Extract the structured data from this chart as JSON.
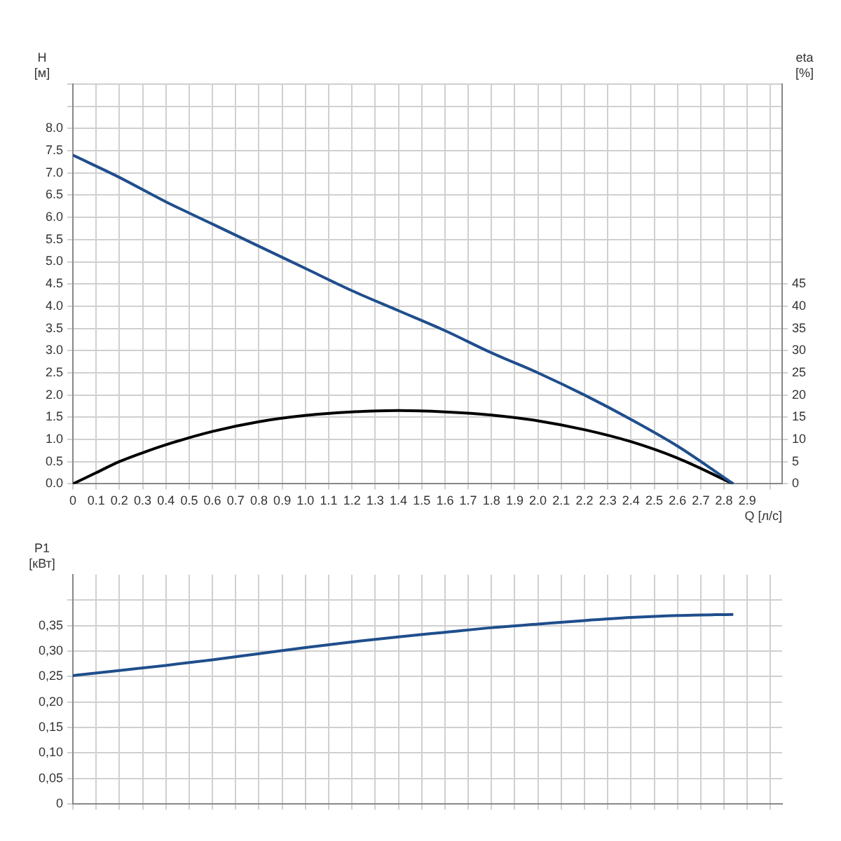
{
  "chart_data": [
    {
      "type": "line",
      "xlabel": "Q [л/с]",
      "ylabel": "H [м]",
      "y2label": "eta [%]",
      "xlim": [
        0,
        3.05
      ],
      "xticks": [
        {
          "value": 0,
          "label": "0"
        },
        {
          "value": 0.1,
          "label": "0.1"
        },
        {
          "value": 0.2,
          "label": "0.2"
        },
        {
          "value": 0.3,
          "label": "0.3"
        },
        {
          "value": 0.4,
          "label": "0.4"
        },
        {
          "value": 0.5,
          "label": "0.5"
        },
        {
          "value": 0.6,
          "label": "0.6"
        },
        {
          "value": 0.7,
          "label": "0.7"
        },
        {
          "value": 0.8,
          "label": "0.8"
        },
        {
          "value": 0.9,
          "label": "0.9"
        },
        {
          "value": 1,
          "label": "1.0"
        },
        {
          "value": 1.1,
          "label": "1.1"
        },
        {
          "value": 1.2,
          "label": "1.2"
        },
        {
          "value": 1.3,
          "label": "1.3"
        },
        {
          "value": 1.4,
          "label": "1.4"
        },
        {
          "value": 1.5,
          "label": "1.5"
        },
        {
          "value": 1.6,
          "label": "1.6"
        },
        {
          "value": 1.7,
          "label": "1.7"
        },
        {
          "value": 1.8,
          "label": "1.8"
        },
        {
          "value": 1.9,
          "label": "1.9"
        },
        {
          "value": 2,
          "label": "2.0"
        },
        {
          "value": 2.1,
          "label": "2.1"
        },
        {
          "value": 2.2,
          "label": "2.2"
        },
        {
          "value": 2.3,
          "label": "2.3"
        },
        {
          "value": 2.4,
          "label": "2.4"
        },
        {
          "value": 2.5,
          "label": "2.5"
        },
        {
          "value": 2.6,
          "label": "2.6"
        },
        {
          "value": 2.7,
          "label": "2.7"
        },
        {
          "value": 2.8,
          "label": "2.8"
        },
        {
          "value": 2.9,
          "label": "2.9"
        },
        {
          "value": 3,
          "label": null
        }
      ],
      "ylim": [
        0,
        9
      ],
      "yticks": [
        {
          "value": 0,
          "label": "0.0"
        },
        {
          "value": 0.5,
          "label": "0.5"
        },
        {
          "value": 1,
          "label": "1.0"
        },
        {
          "value": 1.5,
          "label": "1.5"
        },
        {
          "value": 2,
          "label": "2.0"
        },
        {
          "value": 2.5,
          "label": "2.5"
        },
        {
          "value": 3,
          "label": "3.0"
        },
        {
          "value": 3.5,
          "label": "3.5"
        },
        {
          "value": 4,
          "label": "4.0"
        },
        {
          "value": 4.5,
          "label": "4.5"
        },
        {
          "value": 5,
          "label": "5.0"
        },
        {
          "value": 5.5,
          "label": "5.5"
        },
        {
          "value": 6,
          "label": "6.0"
        },
        {
          "value": 6.5,
          "label": "6.5"
        },
        {
          "value": 7,
          "label": "7.0"
        },
        {
          "value": 7.5,
          "label": "7.5"
        },
        {
          "value": 8,
          "label": "8.0"
        },
        {
          "value": 8.5,
          "label": null
        },
        {
          "value": 9,
          "label": null
        }
      ],
      "y2lim": [
        0,
        90
      ],
      "y2ticks": [
        0,
        5,
        10,
        15,
        20,
        25,
        30,
        35,
        40,
        45
      ],
      "grid": true,
      "legend": false,
      "marker": "none",
      "line_style": "solid",
      "series": [
        {
          "color": "#1f4e8c",
          "x": [
            0,
            0.2,
            0.4,
            0.6,
            0.8,
            1.0,
            1.2,
            1.4,
            1.6,
            1.8,
            2.0,
            2.2,
            2.4,
            2.6,
            2.84
          ],
          "values": [
            7.4,
            6.9,
            6.35,
            5.85,
            5.35,
            4.85,
            4.35,
            3.9,
            3.45,
            2.95,
            2.5,
            2.0,
            1.45,
            0.85,
            0
          ]
        },
        {
          "color": "#000000",
          "axis": "y2",
          "x": [
            0,
            0.1,
            0.2,
            0.3,
            0.4,
            0.6,
            0.8,
            1.0,
            1.2,
            1.4,
            1.6,
            1.8,
            2.0,
            2.2,
            2.4,
            2.6,
            2.84
          ],
          "values": [
            0,
            2.5,
            5,
            7,
            8.8,
            11.8,
            14,
            15.4,
            16.2,
            16.5,
            16.2,
            15.5,
            14.2,
            12.2,
            9.5,
            5.8,
            0
          ]
        }
      ]
    },
    {
      "type": "line",
      "ylabel": "P1 [кВт]",
      "tick_labels": "y",
      "xlim": [
        0,
        3.05
      ],
      "xticks": [
        0,
        0.1,
        0.2,
        0.3,
        0.4,
        0.5,
        0.6,
        0.7,
        0.8,
        0.9,
        1,
        1.1,
        1.2,
        1.3,
        1.4,
        1.5,
        1.6,
        1.7,
        1.8,
        1.9,
        2,
        2.1,
        2.2,
        2.3,
        2.4,
        2.5,
        2.6,
        2.7,
        2.8,
        2.9,
        3
      ],
      "ylim": [
        0,
        0.45
      ],
      "yticks": [
        0,
        {
          "value": 0.05,
          "label": "0,05"
        },
        {
          "value": 0.1,
          "label": "0,10"
        },
        {
          "value": 0.15,
          "label": "0,15"
        },
        {
          "value": 0.2,
          "label": "0,20"
        },
        {
          "value": 0.25,
          "label": "0,25"
        },
        {
          "value": 0.3,
          "label": "0,30"
        },
        {
          "value": 0.35,
          "label": "0,35"
        },
        {
          "value": 0.4,
          "label": null
        }
      ],
      "grid": true,
      "legend": false,
      "marker": "none",
      "line_style": "solid",
      "series": [
        {
          "color": "#1f4e8c",
          "x": [
            0,
            0.2,
            0.4,
            0.6,
            0.8,
            1.0,
            1.2,
            1.4,
            1.6,
            1.8,
            2.0,
            2.2,
            2.4,
            2.6,
            2.84
          ],
          "values": [
            0.252,
            0.262,
            0.272,
            0.283,
            0.295,
            0.307,
            0.318,
            0.328,
            0.337,
            0.346,
            0.353,
            0.36,
            0.366,
            0.37,
            0.372
          ]
        }
      ]
    }
  ]
}
